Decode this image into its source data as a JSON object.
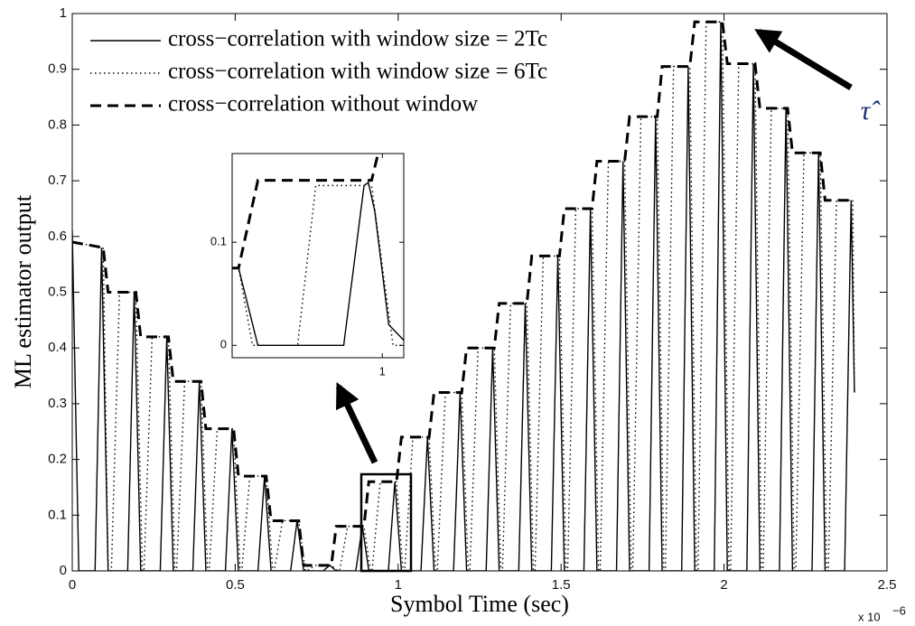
{
  "chart_data": [
    {
      "type": "line",
      "xlabel": "Symbol Time (sec)",
      "ylabel": "ML estimator output",
      "x_scale": {
        "base": "x 10",
        "exponent": "−6"
      },
      "annotation": "τ̂",
      "legend": "upper left",
      "xlim": [
        0,
        2.5
      ],
      "ylim": [
        0,
        1
      ],
      "xticks": [
        0,
        0.5,
        1,
        1.5,
        2,
        2.5
      ],
      "yticks": [
        0,
        0.1,
        0.2,
        0.3,
        0.4,
        0.5,
        0.6,
        0.7,
        0.8,
        0.9,
        1
      ],
      "series": [
        {
          "name": "cross−correlation with window size = 2Tc",
          "color": "#000000",
          "style": "solid",
          "x": [
            0,
            0.02,
            0.07,
            0.09,
            0.11,
            0.17,
            0.19,
            0.21,
            0.27,
            0.29,
            0.31,
            0.37,
            0.39,
            0.41,
            0.47,
            0.49,
            0.51,
            0.57,
            0.59,
            0.61,
            0.67,
            0.69,
            0.71,
            0.77,
            0.79,
            0.81,
            0.87,
            0.89,
            0.91,
            0.97,
            0.99,
            1.01,
            1.07,
            1.09,
            1.11,
            1.17,
            1.19,
            1.21,
            1.27,
            1.29,
            1.31,
            1.37,
            1.39,
            1.41,
            1.47,
            1.49,
            1.51,
            1.57,
            1.59,
            1.61,
            1.67,
            1.69,
            1.71,
            1.77,
            1.79,
            1.81,
            1.87,
            1.89,
            1.91,
            1.97,
            1.99,
            2.01,
            2.07,
            2.09,
            2.11,
            2.17,
            2.19,
            2.21,
            2.27,
            2.29,
            2.31,
            2.37,
            2.39,
            2.4
          ],
          "values": [
            0.61,
            0,
            0,
            0.58,
            0,
            0,
            0.5,
            0,
            0,
            0.42,
            0,
            0,
            0.34,
            0,
            0,
            0.255,
            0,
            0,
            0.17,
            0,
            0,
            0.09,
            0,
            0,
            0.01,
            0,
            0,
            0.08,
            0,
            0,
            0.16,
            0,
            0,
            0.24,
            0,
            0,
            0.32,
            0,
            0,
            0.4,
            0,
            0,
            0.48,
            0,
            0,
            0.565,
            0,
            0,
            0.65,
            0,
            0,
            0.735,
            0,
            0,
            0.815,
            0,
            0,
            0.905,
            0,
            0,
            0.985,
            0,
            0,
            0.91,
            0,
            0,
            0.83,
            0,
            0,
            0.75,
            0,
            0,
            0.665,
            0.32
          ]
        },
        {
          "name": "cross−correlation with window size = 6Tc",
          "color": "#000000",
          "style": "dotted",
          "x": [
            0,
            0.095,
            0.11,
            0.12,
            0.145,
            0.195,
            0.215,
            0.22,
            0.245,
            0.295,
            0.315,
            0.32,
            0.345,
            0.395,
            0.415,
            0.42,
            0.445,
            0.495,
            0.515,
            0.52,
            0.545,
            0.595,
            0.615,
            0.62,
            0.645,
            0.695,
            0.715,
            0.72,
            0.745,
            0.795,
            0.815,
            0.82,
            0.845,
            0.895,
            0.915,
            0.92,
            0.945,
            0.995,
            1.015,
            1.02,
            1.045,
            1.095,
            1.115,
            1.12,
            1.145,
            1.195,
            1.215,
            1.22,
            1.245,
            1.295,
            1.315,
            1.32,
            1.345,
            1.395,
            1.415,
            1.42,
            1.445,
            1.495,
            1.515,
            1.52,
            1.545,
            1.595,
            1.615,
            1.62,
            1.645,
            1.695,
            1.715,
            1.72,
            1.745,
            1.795,
            1.815,
            1.82,
            1.845,
            1.895,
            1.915,
            1.92,
            1.945,
            1.995,
            2.015,
            2.02,
            2.045,
            2.095,
            2.115,
            2.12,
            2.145,
            2.195,
            2.215,
            2.22,
            2.245,
            2.295,
            2.315,
            2.32,
            2.345,
            2.395,
            2.4
          ],
          "values": [
            0.59,
            0.58,
            0,
            0,
            0.5,
            0.5,
            0,
            0,
            0.42,
            0.42,
            0,
            0,
            0.34,
            0.34,
            0,
            0,
            0.255,
            0.255,
            0,
            0,
            0.17,
            0.17,
            0,
            0,
            0.09,
            0.09,
            0,
            0,
            0.01,
            0.01,
            0,
            0,
            0.08,
            0.08,
            0,
            0,
            0.16,
            0.16,
            0,
            0,
            0.24,
            0.24,
            0,
            0,
            0.32,
            0.32,
            0,
            0,
            0.4,
            0.4,
            0,
            0,
            0.48,
            0.48,
            0,
            0,
            0.565,
            0.565,
            0,
            0,
            0.65,
            0.65,
            0,
            0,
            0.735,
            0.735,
            0,
            0,
            0.815,
            0.815,
            0,
            0,
            0.905,
            0.905,
            0,
            0,
            0.985,
            0.985,
            0,
            0,
            0.91,
            0.91,
            0,
            0,
            0.83,
            0.83,
            0,
            0,
            0.75,
            0.75,
            0,
            0,
            0.665,
            0.665,
            0.32
          ]
        },
        {
          "name": "cross−correlation without window",
          "color": "#000000",
          "style": "dashed",
          "x": [
            0,
            0.095,
            0.11,
            0.195,
            0.21,
            0.295,
            0.31,
            0.395,
            0.41,
            0.495,
            0.51,
            0.595,
            0.61,
            0.695,
            0.71,
            0.795,
            0.81,
            0.895,
            0.91,
            0.995,
            1.01,
            1.095,
            1.11,
            1.195,
            1.21,
            1.295,
            1.31,
            1.395,
            1.41,
            1.495,
            1.51,
            1.595,
            1.61,
            1.695,
            1.71,
            1.795,
            1.81,
            1.895,
            1.91,
            1.995,
            2.01,
            2.095,
            2.11,
            2.195,
            2.21,
            2.295,
            2.31,
            2.395
          ],
          "values": [
            0.59,
            0.58,
            0.5,
            0.5,
            0.42,
            0.42,
            0.34,
            0.34,
            0.255,
            0.255,
            0.17,
            0.17,
            0.09,
            0.09,
            0.01,
            0.01,
            0.08,
            0.08,
            0.16,
            0.16,
            0.24,
            0.24,
            0.32,
            0.32,
            0.4,
            0.4,
            0.48,
            0.48,
            0.565,
            0.565,
            0.65,
            0.65,
            0.735,
            0.735,
            0.815,
            0.815,
            0.905,
            0.905,
            0.985,
            0.985,
            0.91,
            0.91,
            0.83,
            0.83,
            0.75,
            0.75,
            0.665,
            0.665
          ]
        }
      ]
    },
    {
      "type": "line",
      "xlim": [
        0.86,
        1.02
      ],
      "ylim": [
        -0.012,
        0.186
      ],
      "xticks": [
        1
      ],
      "yticks": [
        0,
        0.1
      ],
      "series": [
        {
          "color": "#000000",
          "style": "solid",
          "x": [
            0.86,
            0.866,
            0.884,
            0.964,
            0.983,
            0.987,
            0.993,
            1.006,
            1.02
          ],
          "values": [
            0.075,
            0.075,
            0,
            0,
            0.155,
            0.158,
            0.13,
            0.02,
            0.005
          ]
        },
        {
          "color": "#000000",
          "style": "dotted",
          "x": [
            0.86,
            0.866,
            0.879,
            0.921,
            0.938,
            0.99,
            1.01,
            1.02
          ],
          "values": [
            0.075,
            0.075,
            0,
            0,
            0.155,
            0.155,
            0,
            0
          ]
        },
        {
          "color": "#000000",
          "style": "dashed",
          "x": [
            0.86,
            0.866,
            0.884,
            0.99,
            0.997
          ],
          "values": [
            0.075,
            0.075,
            0.16,
            0.16,
            0.19
          ]
        }
      ]
    }
  ]
}
